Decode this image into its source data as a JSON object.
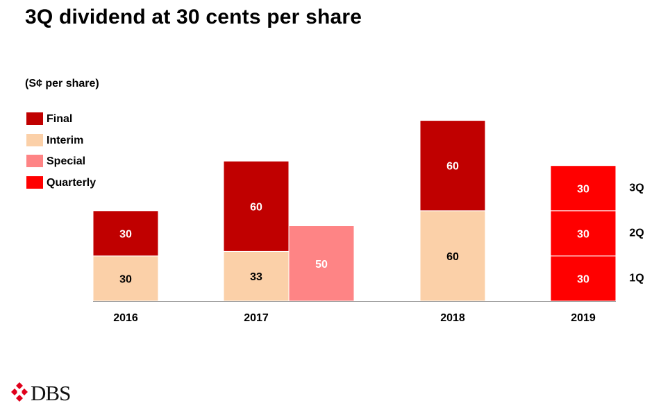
{
  "page": {
    "title": "3Q dividend at 30 cents per share",
    "brand": "DBS"
  },
  "colors": {
    "Final": "#c00000",
    "Interim": "#fbd0a8",
    "Special": "#fe8485",
    "Quarterly": "#ff0000"
  },
  "chart_data": {
    "type": "bar",
    "stacked": true,
    "unit_label": "(S¢ per share)",
    "legend": [
      "Final",
      "Interim",
      "Special",
      "Quarterly"
    ],
    "legend_position": "top-left",
    "ylim": [
      0,
      100
    ],
    "grid": false,
    "categories": [
      "2016",
      "2017",
      "2018",
      "2019"
    ],
    "bars": [
      {
        "category": "2016",
        "segments": [
          {
            "series": "Interim",
            "value": 30
          },
          {
            "series": "Final",
            "value": 30
          }
        ]
      },
      {
        "category": "2017",
        "segments": [
          {
            "series": "Interim",
            "value": 33
          },
          {
            "series": "Final",
            "value": 60
          }
        ]
      },
      {
        "category": "2017",
        "segments": [
          {
            "series": "Special",
            "value": 50
          }
        ]
      },
      {
        "category": "2018",
        "segments": [
          {
            "series": "Interim",
            "value": 60
          },
          {
            "series": "Final",
            "value": 60
          }
        ]
      },
      {
        "category": "2019",
        "segments": [
          {
            "series": "Quarterly",
            "value": 30,
            "label": "1Q"
          },
          {
            "series": "Quarterly",
            "value": 30,
            "label": "2Q"
          },
          {
            "series": "Quarterly",
            "value": 30,
            "label": "3Q"
          }
        ]
      }
    ]
  }
}
